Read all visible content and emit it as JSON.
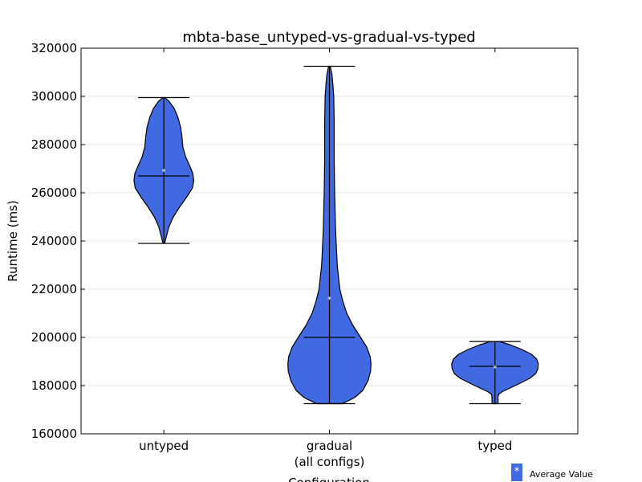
{
  "chart_data": {
    "type": "violin",
    "title": "mbta-base_untyped-vs-gradual-vs-typed",
    "xlabel": "Configuration",
    "ylabel": "Runtime (ms)",
    "ylim": [
      160000,
      320000
    ],
    "yticks": [
      "160000",
      "180000",
      "200000",
      "220000",
      "240000",
      "260000",
      "280000",
      "300000",
      "320000"
    ],
    "grid": "horizontal",
    "color": "#4169e1",
    "categories": [
      {
        "label": "untyped",
        "label2": "",
        "min": 239000,
        "max": 299500,
        "median": 267000,
        "mean": 269000,
        "profile": [
          [
            239000,
            0.02
          ],
          [
            242000,
            0.06
          ],
          [
            246000,
            0.12
          ],
          [
            250000,
            0.22
          ],
          [
            254000,
            0.36
          ],
          [
            258000,
            0.52
          ],
          [
            262000,
            0.66
          ],
          [
            265000,
            0.69
          ],
          [
            268000,
            0.67
          ],
          [
            271000,
            0.6
          ],
          [
            275000,
            0.5
          ],
          [
            279000,
            0.44
          ],
          [
            283000,
            0.42
          ],
          [
            287000,
            0.39
          ],
          [
            291000,
            0.33
          ],
          [
            295000,
            0.24
          ],
          [
            298000,
            0.12
          ],
          [
            299500,
            0.02
          ]
        ]
      },
      {
        "label": "gradual",
        "label2": "(all configs)",
        "min": 172500,
        "max": 312500,
        "median": 200000,
        "mean": 216000,
        "profile": [
          [
            172500,
            0.3
          ],
          [
            175000,
            0.58
          ],
          [
            178000,
            0.77
          ],
          [
            182000,
            0.89
          ],
          [
            186000,
            0.95
          ],
          [
            189000,
            0.96
          ],
          [
            192000,
            0.94
          ],
          [
            196000,
            0.86
          ],
          [
            200000,
            0.72
          ],
          [
            205000,
            0.54
          ],
          [
            210000,
            0.4
          ],
          [
            215000,
            0.31
          ],
          [
            220000,
            0.24
          ],
          [
            230000,
            0.18
          ],
          [
            245000,
            0.14
          ],
          [
            260000,
            0.12
          ],
          [
            275000,
            0.11
          ],
          [
            290000,
            0.11
          ],
          [
            300000,
            0.1
          ],
          [
            305000,
            0.08
          ],
          [
            309000,
            0.06
          ],
          [
            312500,
            0.02
          ]
        ]
      },
      {
        "label": "typed",
        "label2": "",
        "min": 172500,
        "max": 198300,
        "median": 188000,
        "mean": 187500,
        "profile": [
          [
            172500,
            0.07
          ],
          [
            174000,
            0.07
          ],
          [
            175500,
            0.07
          ],
          [
            176500,
            0.09
          ],
          [
            177500,
            0.17
          ],
          [
            179000,
            0.35
          ],
          [
            181000,
            0.58
          ],
          [
            183000,
            0.8
          ],
          [
            185000,
            0.94
          ],
          [
            187000,
            0.99
          ],
          [
            189000,
            1.0
          ],
          [
            191000,
            0.96
          ],
          [
            193000,
            0.84
          ],
          [
            195000,
            0.62
          ],
          [
            197000,
            0.34
          ],
          [
            198300,
            0.1
          ]
        ]
      }
    ]
  },
  "legend": {
    "marker": "*",
    "label": "Average Value"
  }
}
